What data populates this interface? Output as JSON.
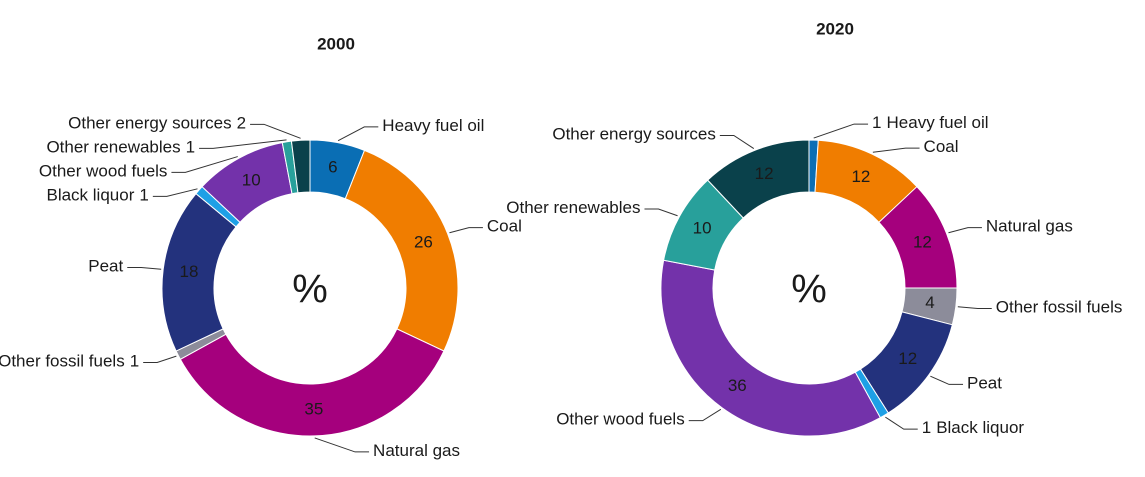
{
  "chart_data": [
    {
      "type": "donut",
      "title": "2000",
      "center_label": "%",
      "categories": [
        "Heavy fuel oil",
        "Coal",
        "Natural gas",
        "Other fossil fuels",
        "Peat",
        "Black liquor",
        "Other wood fuels",
        "Other renewables",
        "Other energy sources"
      ],
      "values": [
        6,
        26,
        35,
        1,
        18,
        1,
        10,
        1,
        2
      ],
      "colors": [
        "#0a6eb4",
        "#f07d00",
        "#a5007d",
        "#8c8c9a",
        "#23327d",
        "#1ea0e6",
        "#7332aa",
        "#28a09b",
        "#0a414b"
      ]
    },
    {
      "type": "donut",
      "title": "2020",
      "center_label": "%",
      "categories": [
        "Heavy fuel oil",
        "Coal",
        "Natural gas",
        "Other fossil fuels",
        "Peat",
        "Black liquor",
        "Other wood fuels",
        "Other renewables",
        "Other energy sources"
      ],
      "values": [
        1,
        12,
        12,
        4,
        12,
        1,
        36,
        10,
        12
      ],
      "colors": [
        "#0a6eb4",
        "#f07d00",
        "#a5007d",
        "#8c8c9a",
        "#23327d",
        "#1ea0e6",
        "#7332aa",
        "#28a09b",
        "#0a414b"
      ]
    }
  ]
}
